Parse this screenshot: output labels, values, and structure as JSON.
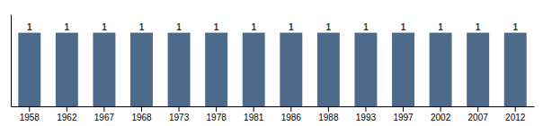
{
  "chart_data": {
    "type": "bar",
    "categories": [
      "1958",
      "1962",
      "1967",
      "1968",
      "1973",
      "1978",
      "1981",
      "1986",
      "1988",
      "1993",
      "1997",
      "2002",
      "2007",
      "2012"
    ],
    "values": [
      1,
      1,
      1,
      1,
      1,
      1,
      1,
      1,
      1,
      1,
      1,
      1,
      1,
      1
    ],
    "color": "#4e6a8a",
    "ylim": [
      0,
      1.25
    ],
    "data_labels": true,
    "tick_labels": "x"
  }
}
